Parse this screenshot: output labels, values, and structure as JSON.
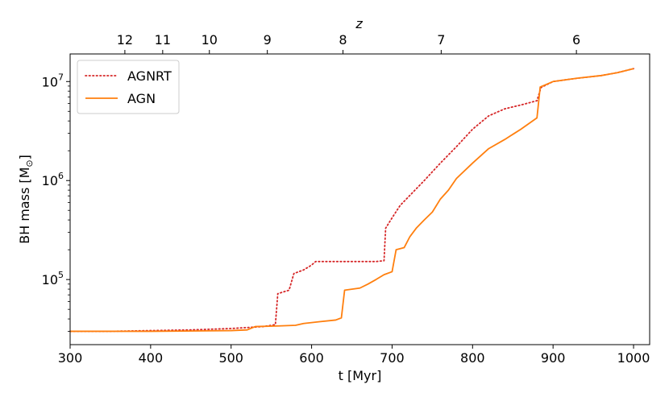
{
  "chart_data": {
    "type": "line",
    "xlabel": "t [Myr]",
    "ylabel_main": "BH mass [M",
    "ylabel_sub": "⊙",
    "ylabel_close": "]",
    "top_axis_label": "z",
    "xlim": [
      300,
      1020
    ],
    "ylim": [
      22000,
      19000000
    ],
    "y_scale": "log",
    "x_ticks": [
      300,
      400,
      500,
      600,
      700,
      800,
      900,
      1000
    ],
    "x_tick_labels": [
      "300",
      "400",
      "500",
      "600",
      "700",
      "800",
      "900",
      "1000"
    ],
    "y_ticks": [
      {
        "value": 100000,
        "base": "10",
        "exp": "5"
      },
      {
        "value": 1000000,
        "base": "10",
        "exp": "6"
      },
      {
        "value": 10000000,
        "base": "10",
        "exp": "7"
      }
    ],
    "top_ticks": [
      {
        "t": 368,
        "label": "12"
      },
      {
        "t": 415,
        "label": "11"
      },
      {
        "t": 473,
        "label": "10"
      },
      {
        "t": 545,
        "label": "9"
      },
      {
        "t": 639,
        "label": "8"
      },
      {
        "t": 761,
        "label": "7"
      },
      {
        "t": 929,
        "label": "6"
      }
    ],
    "legend_position": "top-left",
    "series": [
      {
        "name": "AGNRT",
        "color": "#d62728",
        "style": "dotted",
        "points": [
          [
            300,
            30000
          ],
          [
            350,
            30000
          ],
          [
            400,
            30500
          ],
          [
            450,
            31000
          ],
          [
            500,
            32000
          ],
          [
            540,
            33500
          ],
          [
            555,
            35000
          ],
          [
            558,
            72000
          ],
          [
            565,
            75000
          ],
          [
            572,
            78000
          ],
          [
            578,
            115000
          ],
          [
            590,
            125000
          ],
          [
            600,
            140000
          ],
          [
            605,
            152000
          ],
          [
            630,
            152000
          ],
          [
            660,
            152000
          ],
          [
            680,
            152000
          ],
          [
            690,
            155000
          ],
          [
            692,
            330000
          ],
          [
            700,
            420000
          ],
          [
            710,
            560000
          ],
          [
            720,
            680000
          ],
          [
            740,
            1000000
          ],
          [
            760,
            1500000
          ],
          [
            780,
            2200000
          ],
          [
            800,
            3300000
          ],
          [
            820,
            4500000
          ],
          [
            840,
            5300000
          ],
          [
            860,
            5800000
          ],
          [
            880,
            6400000
          ],
          [
            885,
            8700000
          ],
          [
            900,
            10000000
          ],
          [
            930,
            10800000
          ],
          [
            960,
            11500000
          ],
          [
            980,
            12300000
          ],
          [
            1000,
            13500000
          ]
        ]
      },
      {
        "name": "AGN",
        "color": "#ff7f0e",
        "style": "solid",
        "points": [
          [
            300,
            30000
          ],
          [
            400,
            30000
          ],
          [
            500,
            30500
          ],
          [
            520,
            31000
          ],
          [
            530,
            33500
          ],
          [
            560,
            34000
          ],
          [
            580,
            34500
          ],
          [
            590,
            36000
          ],
          [
            610,
            37500
          ],
          [
            630,
            39000
          ],
          [
            637,
            41000
          ],
          [
            641,
            78000
          ],
          [
            660,
            82000
          ],
          [
            670,
            90000
          ],
          [
            680,
            100000
          ],
          [
            690,
            112000
          ],
          [
            700,
            120000
          ],
          [
            705,
            200000
          ],
          [
            715,
            210000
          ],
          [
            722,
            270000
          ],
          [
            730,
            330000
          ],
          [
            740,
            400000
          ],
          [
            750,
            480000
          ],
          [
            760,
            650000
          ],
          [
            770,
            800000
          ],
          [
            780,
            1050000
          ],
          [
            800,
            1500000
          ],
          [
            820,
            2100000
          ],
          [
            840,
            2600000
          ],
          [
            860,
            3300000
          ],
          [
            880,
            4300000
          ],
          [
            884,
            8800000
          ],
          [
            900,
            10000000
          ],
          [
            930,
            10800000
          ],
          [
            960,
            11500000
          ],
          [
            980,
            12300000
          ],
          [
            1000,
            13500000
          ]
        ]
      }
    ]
  }
}
